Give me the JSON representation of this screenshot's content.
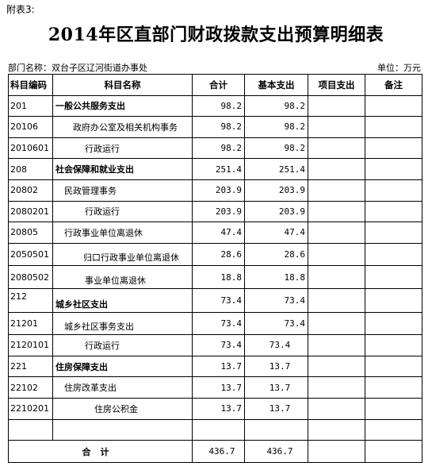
{
  "attachment_label": "附表3:",
  "title": "2014年区直部门财政拨款支出预算明细表",
  "department": "部门名称：双台子区辽河街道办事处",
  "unit": "单位：万元",
  "columns": [
    "科目编码",
    "科目名称",
    "合计",
    "基本支出",
    "项目支出",
    "备注"
  ],
  "rows": [
    {
      "code": "201",
      "name": "一般公共服务支出",
      "total": "98.2",
      "basic": "98.2",
      "project": "",
      "note": ""
    },
    {
      "code": "20106",
      "name": "政府办公室及相关机构事务",
      "total": "98.2",
      "basic": "98.2",
      "project": "",
      "note": ""
    },
    {
      "code": "2010601",
      "name": "行政运行",
      "total": "98.2",
      "basic": "98.2",
      "project": "",
      "note": ""
    },
    {
      "code": "208",
      "name": "社会保障和就业支出",
      "total": "251.4",
      "basic": "251.4",
      "project": "",
      "note": ""
    },
    {
      "code": "20802",
      "name": "民政管理事务",
      "total": "203.9",
      "basic": "203.9",
      "project": "",
      "note": ""
    },
    {
      "code": "2080201",
      "name": "行政运行",
      "total": "203.9",
      "basic": "203.9",
      "project": "",
      "note": ""
    },
    {
      "code": "20805",
      "name": "行政事业单位离退休",
      "total": "47.4",
      "basic": "47.4",
      "project": "",
      "note": ""
    },
    {
      "code": "2050501",
      "name": "归口行政事业单位离退休",
      "total": "28.6",
      "basic": "28.6",
      "project": "",
      "note": ""
    },
    {
      "code": "2080502",
      "name": "事业单位离退休",
      "total": "18.8",
      "basic": "18.8",
      "project": "",
      "note": ""
    },
    {
      "code": "212",
      "name": "城乡社区支出",
      "total": "73.4",
      "basic": "73.4",
      "project": "",
      "note": ""
    },
    {
      "code": "21201",
      "name": "城乡社区事务支出",
      "total": "73.4",
      "basic": "73.4",
      "project": "",
      "note": ""
    },
    {
      "code": "2120101",
      "name": "行政运行",
      "total": "73.4",
      "basic": "73.4",
      "project": "",
      "note": ""
    },
    {
      "code": "221",
      "name": "住房保障支出",
      "total": "13.7",
      "basic": "13.7",
      "project": "",
      "note": ""
    },
    {
      "code": "22102",
      "name": "住房改革支出",
      "total": "13.7",
      "basic": "13.7",
      "project": "",
      "note": ""
    },
    {
      "code": "2210201",
      "name": "住房公积金",
      "total": "13.7",
      "basic": "13.7",
      "project": "",
      "note": ""
    }
  ],
  "total_row": {
    "label": "合计",
    "total": "436.7",
    "basic": "436.7",
    "project": "",
    "note": ""
  }
}
